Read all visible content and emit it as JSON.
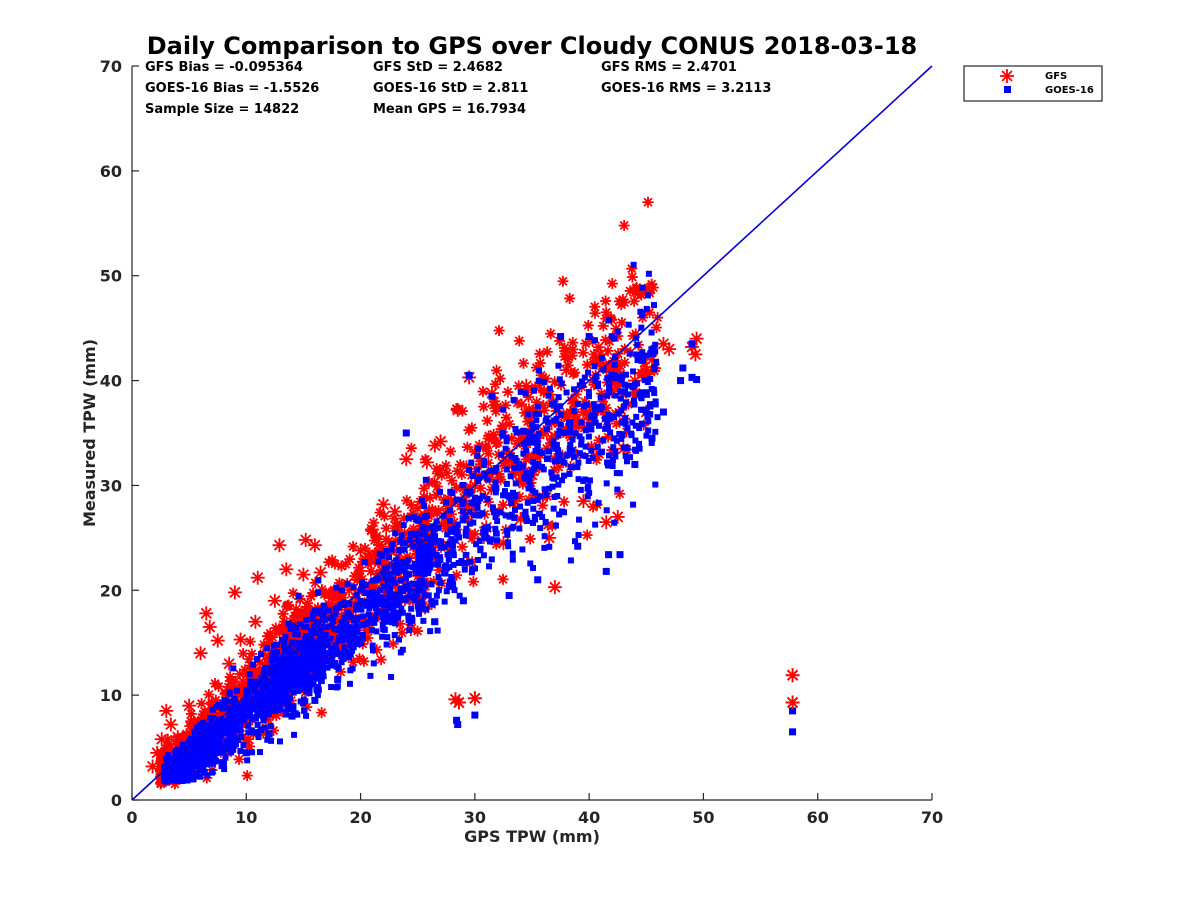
{
  "chart_data": {
    "type": "scatter",
    "title": "Daily Comparison to GPS over Cloudy CONUS 2018-03-18",
    "xlabel": "GPS TPW (mm)",
    "ylabel": "Measured TPW (mm)",
    "xlim": [
      0,
      70
    ],
    "ylim": [
      0,
      70
    ],
    "xticks": [
      0,
      10,
      20,
      30,
      40,
      50,
      60,
      70
    ],
    "yticks": [
      0,
      10,
      20,
      30,
      40,
      50,
      60,
      70
    ],
    "grid": false,
    "legend_position": "outside-top-right",
    "reference_line": {
      "x": [
        0,
        70
      ],
      "y": [
        0,
        70
      ],
      "color": "#0000dd"
    },
    "stats": [
      "GFS Bias = -0.095364",
      "GFS StD = 2.4682",
      "GFS RMS = 2.4701",
      "GOES-16 Bias = -1.5526",
      "GOES-16 StD = 2.811",
      "GOES-16 RMS = 3.2113",
      "Sample Size = 14822",
      "Mean GPS = 16.7934"
    ],
    "series": [
      {
        "name": "GFS",
        "marker": "asterisk",
        "color": "#ff0000",
        "points": [
          [
            1.8,
            3.2
          ],
          [
            2.2,
            4.5
          ],
          [
            2.6,
            5.8
          ],
          [
            3.0,
            8.5
          ],
          [
            3.4,
            7.2
          ],
          [
            4.0,
            6.0
          ],
          [
            5.0,
            9.0
          ],
          [
            6.0,
            14.0
          ],
          [
            6.5,
            17.8
          ],
          [
            6.8,
            16.5
          ],
          [
            7.5,
            15.2
          ],
          [
            8.5,
            13.0
          ],
          [
            9.0,
            19.8
          ],
          [
            9.5,
            15.3
          ],
          [
            10.8,
            17.0
          ],
          [
            11.0,
            21.2
          ],
          [
            12.5,
            19.0
          ],
          [
            12.9,
            24.3
          ],
          [
            13.5,
            22.0
          ],
          [
            15.0,
            21.5
          ],
          [
            15.2,
            24.8
          ],
          [
            16.0,
            24.3
          ],
          [
            16.5,
            21.7
          ],
          [
            17.0,
            17.8
          ],
          [
            19.0,
            20.0
          ],
          [
            20.0,
            23.8
          ],
          [
            21.0,
            25.8
          ],
          [
            22.0,
            28.2
          ],
          [
            23.0,
            27.5
          ],
          [
            24.0,
            32.5
          ],
          [
            24.4,
            16.3
          ],
          [
            25.0,
            27.0
          ],
          [
            25.8,
            32.2
          ],
          [
            26.5,
            33.8
          ],
          [
            27.0,
            34.2
          ],
          [
            28.5,
            37.2
          ],
          [
            28.3,
            9.6
          ],
          [
            28.6,
            9.3
          ],
          [
            30.0,
            9.7
          ],
          [
            29.5,
            40.3
          ],
          [
            30.0,
            30.0
          ],
          [
            31.0,
            26.0
          ],
          [
            31.5,
            38.8
          ],
          [
            32.5,
            24.5
          ],
          [
            33.5,
            28.5
          ],
          [
            34.0,
            26.8
          ],
          [
            34.5,
            39.5
          ],
          [
            35.0,
            31.0
          ],
          [
            36.5,
            25.0
          ],
          [
            37.0,
            20.3
          ],
          [
            38.0,
            41.0
          ],
          [
            38.5,
            33.0
          ],
          [
            39.5,
            28.5
          ],
          [
            40.0,
            36.0
          ],
          [
            41.0,
            42.5
          ],
          [
            41.5,
            26.5
          ],
          [
            42.0,
            39.0
          ],
          [
            42.5,
            27.0
          ],
          [
            43.0,
            33.5
          ],
          [
            44.0,
            40.0
          ],
          [
            45.0,
            37.0
          ],
          [
            45.5,
            42.0
          ],
          [
            46.5,
            43.5
          ],
          [
            47.0,
            43.0
          ],
          [
            49.0,
            43.2
          ],
          [
            49.4,
            44.0
          ],
          [
            49.3,
            42.5
          ],
          [
            57.8,
            11.9
          ],
          [
            57.8,
            9.3
          ]
        ]
      },
      {
        "name": "GOES-16",
        "marker": "square",
        "color": "#0000ff",
        "points": [
          [
            3.0,
            1.8
          ],
          [
            3.5,
            2.2
          ],
          [
            4.5,
            2.0
          ],
          [
            5.5,
            2.5
          ],
          [
            8.0,
            3.5
          ],
          [
            10.0,
            4.5
          ],
          [
            12.0,
            6.3
          ],
          [
            14.0,
            8.0
          ],
          [
            16.0,
            9.5
          ],
          [
            18.0,
            11.5
          ],
          [
            20.0,
            15.0
          ],
          [
            22.0,
            17.5
          ],
          [
            25.0,
            22.0
          ],
          [
            26.5,
            17.0
          ],
          [
            28.0,
            21.0
          ],
          [
            29.0,
            19.0
          ],
          [
            30.0,
            8.1
          ],
          [
            28.5,
            7.2
          ],
          [
            28.4,
            7.6
          ],
          [
            24.0,
            35.0
          ],
          [
            29.5,
            40.5
          ],
          [
            31.5,
            38.5
          ],
          [
            33.0,
            19.5
          ],
          [
            35.5,
            21.0
          ],
          [
            37.5,
            44.2
          ],
          [
            39.0,
            24.2
          ],
          [
            40.0,
            44.2
          ],
          [
            41.5,
            21.8
          ],
          [
            41.7,
            23.4
          ],
          [
            42.7,
            23.4
          ],
          [
            44.0,
            32.0
          ],
          [
            45.0,
            37.0
          ],
          [
            45.5,
            34.5
          ],
          [
            46.5,
            37.0
          ],
          [
            48.0,
            40.0
          ],
          [
            48.2,
            41.2
          ],
          [
            49.0,
            40.3
          ],
          [
            49.4,
            40.1
          ],
          [
            49.0,
            43.5
          ],
          [
            57.8,
            8.5
          ],
          [
            57.8,
            6.5
          ]
        ]
      }
    ]
  }
}
